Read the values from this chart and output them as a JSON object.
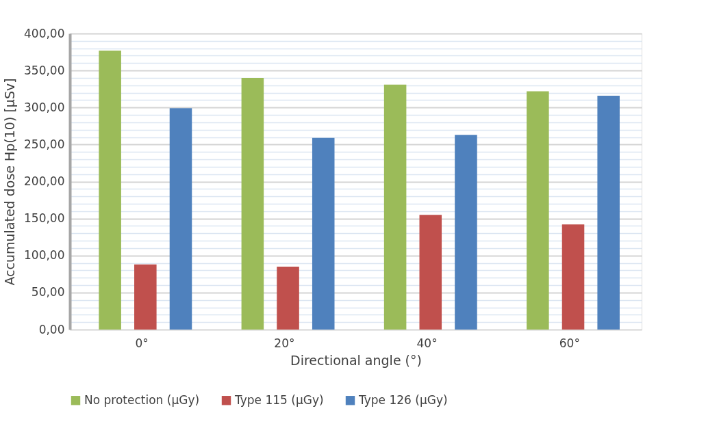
{
  "chart_data": {
    "type": "bar",
    "xlabel": "Directional angle (°)",
    "ylabel": "Accumulated dose Hp(10) [µSv]",
    "categories": [
      "0°",
      "20°",
      "40°",
      "60°"
    ],
    "series": [
      {
        "name": "No protection (µGy)",
        "color": "#9bbb59",
        "values": [
          377,
          340,
          331,
          322
        ]
      },
      {
        "name": "Type 115 (µGy)",
        "color": "#c0504d",
        "values": [
          88,
          85,
          155,
          142
        ]
      },
      {
        "name": "Type 126 (µGy)",
        "color": "#4f81bd",
        "values": [
          299,
          259,
          263,
          316
        ]
      }
    ],
    "ylim": [
      0,
      400
    ],
    "yticks": [
      {
        "value": 0,
        "label": "0,00"
      },
      {
        "value": 10,
        "label": null
      },
      {
        "value": 20,
        "label": null
      },
      {
        "value": 30,
        "label": null
      },
      {
        "value": 40,
        "label": null
      },
      {
        "value": 50,
        "label": "50,00"
      },
      {
        "value": 60,
        "label": null
      },
      {
        "value": 70,
        "label": null
      },
      {
        "value": 80,
        "label": null
      },
      {
        "value": 90,
        "label": null
      },
      {
        "value": 100,
        "label": "100,00"
      },
      {
        "value": 110,
        "label": null
      },
      {
        "value": 120,
        "label": null
      },
      {
        "value": 130,
        "label": null
      },
      {
        "value": 140,
        "label": null
      },
      {
        "value": 150,
        "label": "150,00"
      },
      {
        "value": 160,
        "label": null
      },
      {
        "value": 170,
        "label": null
      },
      {
        "value": 180,
        "label": null
      },
      {
        "value": 190,
        "label": null
      },
      {
        "value": 200,
        "label": "200,00"
      },
      {
        "value": 210,
        "label": null
      },
      {
        "value": 220,
        "label": null
      },
      {
        "value": 230,
        "label": null
      },
      {
        "value": 240,
        "label": null
      },
      {
        "value": 250,
        "label": "250,00"
      },
      {
        "value": 260,
        "label": null
      },
      {
        "value": 270,
        "label": null
      },
      {
        "value": 280,
        "label": null
      },
      {
        "value": 290,
        "label": null
      },
      {
        "value": 300,
        "label": "300,00"
      },
      {
        "value": 310,
        "label": null
      },
      {
        "value": 320,
        "label": null
      },
      {
        "value": 330,
        "label": null
      },
      {
        "value": 340,
        "label": null
      },
      {
        "value": 350,
        "label": "350,00"
      },
      {
        "value": 360,
        "label": null
      },
      {
        "value": 370,
        "label": null
      },
      {
        "value": 380,
        "label": null
      },
      {
        "value": 390,
        "label": null
      },
      {
        "value": 400,
        "label": "400,00"
      }
    ],
    "grid": "y",
    "legend": "bottom"
  }
}
